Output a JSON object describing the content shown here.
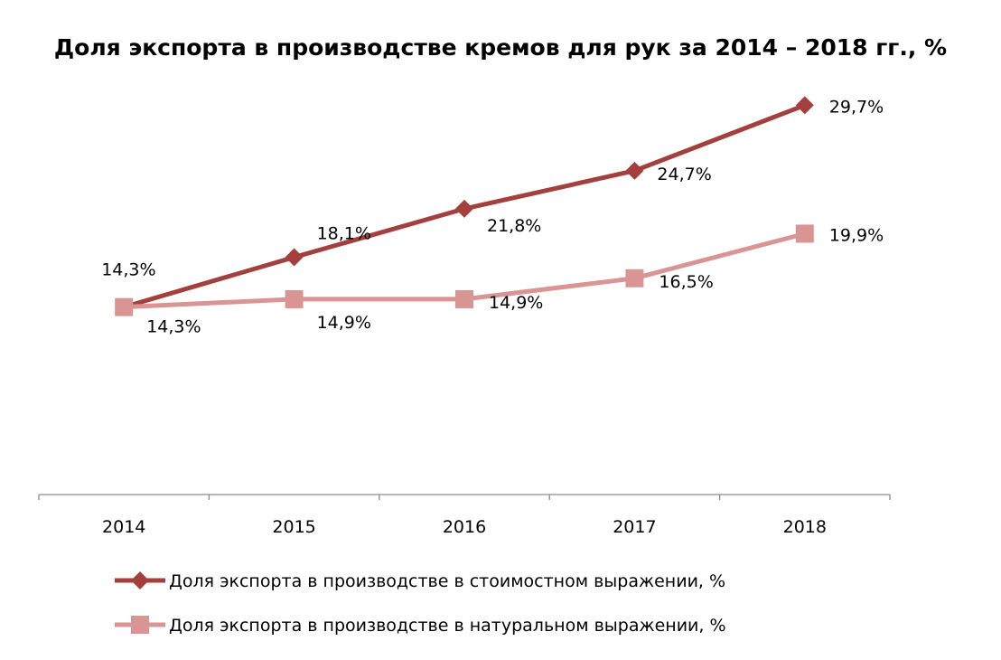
{
  "chart_data": {
    "type": "line",
    "title": "Доля экспорта в производстве кремов для рук за 2014 – 2018 гг., %",
    "categories": [
      "2014",
      "2015",
      "2016",
      "2017",
      "2018"
    ],
    "ylim": [
      0,
      35
    ],
    "grid": false,
    "legend_position": "bottom",
    "series": [
      {
        "name": "Доля экспорта в производстве в стоимостном выражении, %",
        "values": [
          14.3,
          18.1,
          21.8,
          24.7,
          29.7
        ],
        "labels": [
          "14,3%",
          "18,1%",
          "21,8%",
          "24,7%",
          "29,7%"
        ],
        "color": "#a3403d",
        "marker": "diamond"
      },
      {
        "name": "Доля экспорта в производстве в натуральном выражении, %",
        "values": [
          14.3,
          14.9,
          14.9,
          16.5,
          19.9
        ],
        "labels": [
          "14,3%",
          "14,9%",
          "14,9%",
          "16,5%",
          "19,9%"
        ],
        "color": "#d99593",
        "marker": "square"
      }
    ]
  }
}
